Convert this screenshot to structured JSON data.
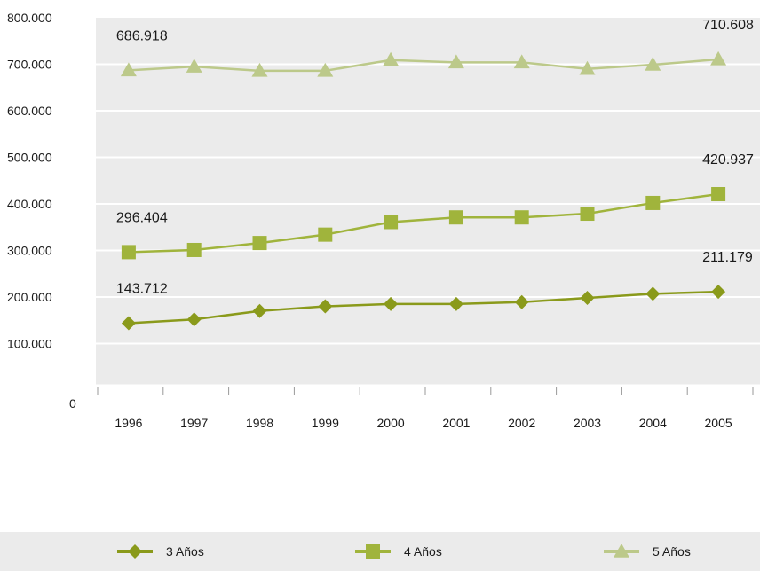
{
  "chart_data": {
    "type": "line",
    "categories": [
      "1996",
      "1997",
      "1998",
      "1999",
      "2000",
      "2001",
      "2002",
      "2003",
      "2004",
      "2005"
    ],
    "series": [
      {
        "name": "3 Años",
        "marker": "diamond",
        "color": "#8a9a1b",
        "values": [
          143712,
          152000,
          170000,
          180000,
          185000,
          185000,
          189000,
          198000,
          207000,
          211179
        ],
        "labels": [
          {
            "index": 0,
            "text": "143.712"
          },
          {
            "index": 9,
            "text": "211.179"
          }
        ]
      },
      {
        "name": "4 Años",
        "marker": "square",
        "color": "#a0b43c",
        "values": [
          296404,
          301000,
          316000,
          334000,
          361000,
          371000,
          371000,
          379000,
          402000,
          420937
        ],
        "labels": [
          {
            "index": 0,
            "text": "296.404"
          },
          {
            "index": 9,
            "text": "420.937"
          }
        ]
      },
      {
        "name": "5 Años",
        "marker": "triangle",
        "color": "#bcc98a",
        "values": [
          686918,
          695000,
          686000,
          686000,
          709000,
          704000,
          704000,
          690000,
          699000,
          710608
        ],
        "labels": [
          {
            "index": 0,
            "text": "686.918"
          },
          {
            "index": 9,
            "text": "710.608"
          }
        ]
      }
    ],
    "yticks": [
      {
        "value": 0,
        "label": "0"
      },
      {
        "value": 100000,
        "label": "100.000"
      },
      {
        "value": 200000,
        "label": "200.000"
      },
      {
        "value": 300000,
        "label": "300.000"
      },
      {
        "value": 400000,
        "label": "400.000"
      },
      {
        "value": 500000,
        "label": "500.000"
      },
      {
        "value": 600000,
        "label": "600.000"
      },
      {
        "value": 700000,
        "label": "700.000"
      },
      {
        "value": 800000,
        "label": "800.000"
      }
    ],
    "ylim": [
      0,
      800000
    ],
    "grid": true,
    "legend_position": "bottom",
    "background": "#ebebeb"
  }
}
